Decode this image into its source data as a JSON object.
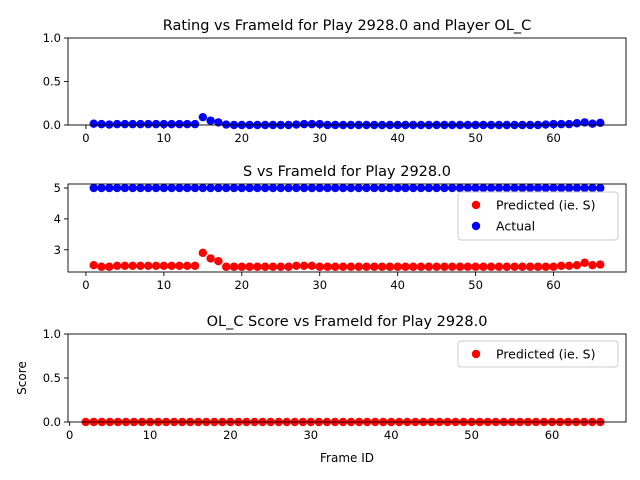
{
  "chart_data": [
    {
      "type": "scatter",
      "title": "Rating vs FrameId for Play 2928.0 and Player OL_C",
      "xlabel": "",
      "ylabel": "",
      "xlim": [
        -2.3,
        69.3
      ],
      "ylim": [
        0.0,
        1.0
      ],
      "xticks": [
        0,
        10,
        20,
        30,
        40,
        50,
        60
      ],
      "yticks": [
        0.0,
        0.5,
        1.0
      ],
      "xtick_labels": [
        "0",
        "10",
        "20",
        "30",
        "40",
        "50",
        "60"
      ],
      "ytick_labels": [
        "0.0",
        "0.5",
        "1.0"
      ],
      "grid": false,
      "legend": null,
      "series": [
        {
          "color": "#0000ff",
          "x": [
            1,
            2,
            3,
            4,
            5,
            6,
            7,
            8,
            9,
            10,
            11,
            12,
            13,
            14,
            15,
            16,
            17,
            18,
            19,
            20,
            21,
            22,
            23,
            24,
            25,
            26,
            27,
            28,
            29,
            30,
            31,
            32,
            33,
            34,
            35,
            36,
            37,
            38,
            39,
            40,
            41,
            42,
            43,
            44,
            45,
            46,
            47,
            48,
            49,
            50,
            51,
            52,
            53,
            54,
            55,
            56,
            57,
            58,
            59,
            60,
            61,
            62,
            63,
            64,
            65,
            66
          ],
          "y": [
            0.015,
            0.01,
            0.005,
            0.01,
            0.01,
            0.01,
            0.01,
            0.01,
            0.01,
            0.01,
            0.01,
            0.01,
            0.01,
            0.01,
            0.09,
            0.05,
            0.03,
            0.005,
            0.0,
            0.0,
            0.0,
            0.0,
            0.0,
            0.0,
            0.0,
            0.0,
            0.005,
            0.01,
            0.01,
            0.01,
            0.0,
            0.0,
            0.0,
            0.0,
            0.0,
            0.0,
            0.0,
            0.0,
            0.0,
            0.0,
            0.0,
            0.0,
            0.0,
            0.0,
            0.0,
            0.0,
            0.0,
            0.0,
            0.0,
            0.0,
            0.0,
            0.0,
            0.0,
            0.0,
            0.0,
            0.0,
            0.0,
            0.0,
            0.005,
            0.01,
            0.01,
            0.01,
            0.02,
            0.03,
            0.015,
            0.025
          ]
        }
      ]
    },
    {
      "type": "scatter",
      "title": "S vs FrameId for Play 2928.0",
      "xlabel": "",
      "ylabel": "",
      "xlim": [
        -2.3,
        69.3
      ],
      "ylim": [
        2.28,
        5.13
      ],
      "xticks": [
        0,
        10,
        20,
        30,
        40,
        50,
        60
      ],
      "yticks": [
        3,
        4,
        5
      ],
      "xtick_labels": [
        "0",
        "10",
        "20",
        "30",
        "40",
        "50",
        "60"
      ],
      "ytick_labels": [
        "3",
        "4",
        "5"
      ],
      "grid": false,
      "legend": "right",
      "series": [
        {
          "name": "Predicted (ie. S)",
          "color": "#ff0000",
          "x": [
            1,
            2,
            3,
            4,
            5,
            6,
            7,
            8,
            9,
            10,
            11,
            12,
            13,
            14,
            15,
            16,
            17,
            18,
            19,
            20,
            21,
            22,
            23,
            24,
            25,
            26,
            27,
            28,
            29,
            30,
            31,
            32,
            33,
            34,
            35,
            36,
            37,
            38,
            39,
            40,
            41,
            42,
            43,
            44,
            45,
            46,
            47,
            48,
            49,
            50,
            51,
            52,
            53,
            54,
            55,
            56,
            57,
            58,
            59,
            60,
            61,
            62,
            63,
            64,
            65,
            66
          ],
          "y": [
            2.5,
            2.45,
            2.45,
            2.48,
            2.48,
            2.48,
            2.48,
            2.48,
            2.48,
            2.48,
            2.48,
            2.48,
            2.48,
            2.48,
            2.9,
            2.72,
            2.63,
            2.45,
            2.45,
            2.45,
            2.45,
            2.45,
            2.45,
            2.45,
            2.45,
            2.45,
            2.48,
            2.48,
            2.48,
            2.45,
            2.45,
            2.45,
            2.45,
            2.45,
            2.45,
            2.45,
            2.45,
            2.45,
            2.45,
            2.45,
            2.45,
            2.45,
            2.45,
            2.45,
            2.45,
            2.45,
            2.45,
            2.45,
            2.45,
            2.45,
            2.45,
            2.45,
            2.45,
            2.45,
            2.45,
            2.45,
            2.45,
            2.45,
            2.45,
            2.45,
            2.48,
            2.48,
            2.5,
            2.58,
            2.5,
            2.52
          ]
        },
        {
          "name": "Actual",
          "color": "#0000ff",
          "x": [
            1,
            2,
            3,
            4,
            5,
            6,
            7,
            8,
            9,
            10,
            11,
            12,
            13,
            14,
            15,
            16,
            17,
            18,
            19,
            20,
            21,
            22,
            23,
            24,
            25,
            26,
            27,
            28,
            29,
            30,
            31,
            32,
            33,
            34,
            35,
            36,
            37,
            38,
            39,
            40,
            41,
            42,
            43,
            44,
            45,
            46,
            47,
            48,
            49,
            50,
            51,
            52,
            53,
            54,
            55,
            56,
            57,
            58,
            59,
            60,
            61,
            62,
            63,
            64,
            65,
            66
          ],
          "y": [
            5,
            5,
            5,
            5,
            5,
            5,
            5,
            5,
            5,
            5,
            5,
            5,
            5,
            5,
            5,
            5,
            5,
            5,
            5,
            5,
            5,
            5,
            5,
            5,
            5,
            5,
            5,
            5,
            5,
            5,
            5,
            5,
            5,
            5,
            5,
            5,
            5,
            5,
            5,
            5,
            5,
            5,
            5,
            5,
            5,
            5,
            5,
            5,
            5,
            5,
            5,
            5,
            5,
            5,
            5,
            5,
            5,
            5,
            5,
            5,
            5,
            5,
            5,
            5,
            5,
            5
          ]
        }
      ]
    },
    {
      "type": "scatter",
      "title": "OL_C Score vs FrameId for Play 2928.0",
      "xlabel": "Frame ID",
      "ylabel": "Score",
      "xlim": [
        -0.2,
        69.2
      ],
      "ylim": [
        0.0,
        1.0
      ],
      "xticks": [
        0,
        10,
        20,
        30,
        40,
        50,
        60
      ],
      "yticks": [
        0.0,
        0.5,
        1.0
      ],
      "xtick_labels": [
        "0",
        "10",
        "20",
        "30",
        "40",
        "50",
        "60"
      ],
      "ytick_labels": [
        "0.0",
        "0.5",
        "1.0"
      ],
      "grid": false,
      "legend": "top-right",
      "series": [
        {
          "name": "Predicted (ie. S)",
          "color": "#ff0000",
          "x": [
            2,
            3,
            4,
            5,
            6,
            7,
            8,
            9,
            10,
            11,
            12,
            13,
            14,
            15,
            16,
            17,
            18,
            19,
            20,
            21,
            22,
            23,
            24,
            25,
            26,
            27,
            28,
            29,
            30,
            31,
            32,
            33,
            34,
            35,
            36,
            37,
            38,
            39,
            40,
            41,
            42,
            43,
            44,
            45,
            46,
            47,
            48,
            49,
            50,
            51,
            52,
            53,
            54,
            55,
            56,
            57,
            58,
            59,
            60,
            61,
            62,
            63,
            64,
            65,
            66
          ],
          "y": [
            0,
            0,
            0,
            0,
            0,
            0,
            0,
            0,
            0,
            0,
            0,
            0,
            0,
            0,
            0,
            0,
            0,
            0,
            0,
            0,
            0,
            0,
            0,
            0,
            0,
            0,
            0,
            0,
            0,
            0,
            0,
            0,
            0,
            0,
            0,
            0,
            0,
            0,
            0,
            0,
            0,
            0,
            0,
            0,
            0,
            0,
            0,
            0,
            0,
            0,
            0,
            0,
            0,
            0,
            0,
            0,
            0,
            0,
            0,
            0,
            0,
            0,
            0,
            0,
            0
          ]
        }
      ]
    }
  ]
}
